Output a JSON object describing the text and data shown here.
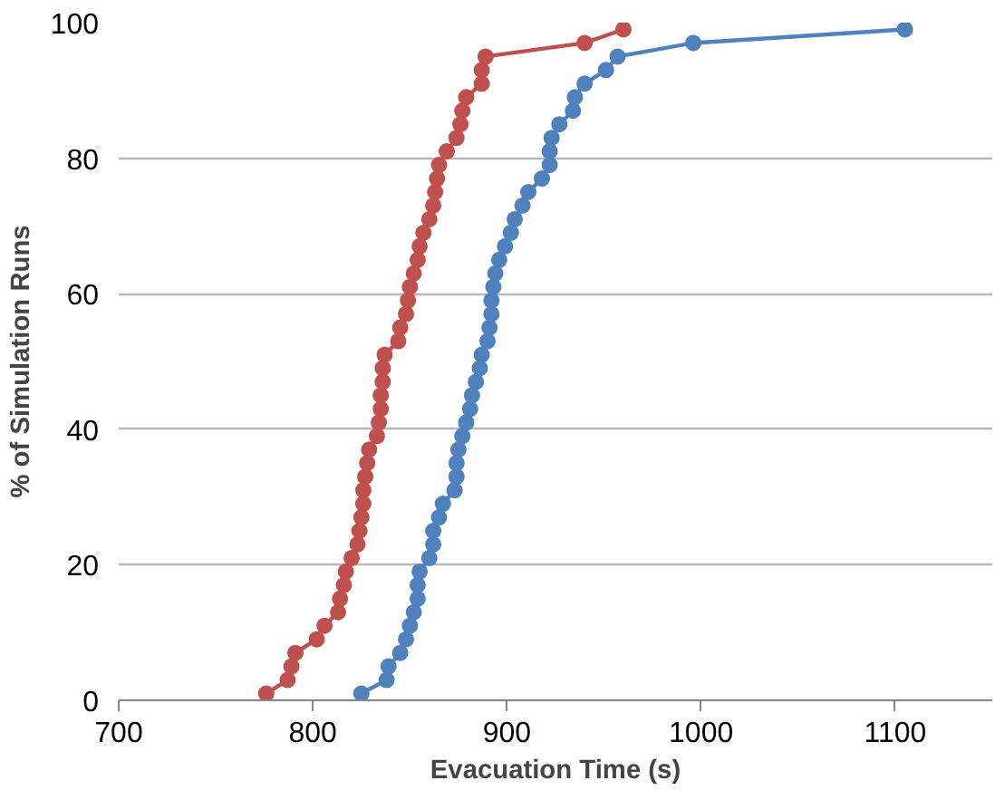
{
  "chart_data": {
    "type": "line",
    "xlabel": "Evacuation Time (s)",
    "ylabel": "% of Simulation Runs",
    "xlim": [
      700,
      1150
    ],
    "xticks": [
      700,
      800,
      900,
      1000,
      1100
    ],
    "ylim": [
      0,
      100
    ],
    "yticks": [
      0,
      20,
      40,
      60,
      80,
      100
    ],
    "grid": "y",
    "marker": "circle",
    "line_style": "solid",
    "series": [
      {
        "color": "#c0504d",
        "x": [
          776,
          787,
          789,
          791,
          802,
          806,
          813,
          814,
          816,
          817,
          820,
          823,
          824,
          825,
          826,
          826,
          827,
          828,
          829,
          833,
          834,
          835,
          835,
          836,
          836,
          837,
          844,
          845,
          848,
          849,
          850,
          852,
          854,
          855,
          857,
          860,
          862,
          863,
          864,
          865,
          869,
          874,
          876,
          877,
          879,
          887,
          887,
          889,
          940,
          960
        ],
        "values": [
          1,
          3,
          5,
          7,
          9,
          11,
          13,
          15,
          17,
          19,
          21,
          23,
          25,
          27,
          29,
          31,
          33,
          35,
          37,
          39,
          41,
          43,
          45,
          47,
          49,
          51,
          53,
          55,
          57,
          59,
          61,
          63,
          65,
          67,
          69,
          71,
          73,
          75,
          77,
          79,
          81,
          83,
          85,
          87,
          89,
          91,
          93,
          95,
          97,
          99
        ]
      },
      {
        "color": "#4f81bd",
        "x": [
          825,
          838,
          839,
          845,
          848,
          850,
          852,
          854,
          854,
          855,
          860,
          862,
          862,
          865,
          867,
          873,
          874,
          874,
          875,
          877,
          879,
          881,
          882,
          884,
          886,
          887,
          890,
          891,
          892,
          892,
          893,
          894,
          896,
          899,
          902,
          904,
          908,
          911,
          918,
          922,
          922,
          923,
          927,
          934,
          935,
          940,
          951,
          957,
          996,
          1105
        ],
        "values": [
          1,
          3,
          5,
          7,
          9,
          11,
          13,
          15,
          17,
          19,
          21,
          23,
          25,
          27,
          29,
          31,
          33,
          35,
          37,
          39,
          41,
          43,
          45,
          47,
          49,
          51,
          53,
          55,
          57,
          59,
          61,
          63,
          65,
          67,
          69,
          71,
          73,
          75,
          77,
          79,
          81,
          83,
          85,
          87,
          89,
          91,
          93,
          95,
          97,
          99
        ]
      }
    ]
  }
}
